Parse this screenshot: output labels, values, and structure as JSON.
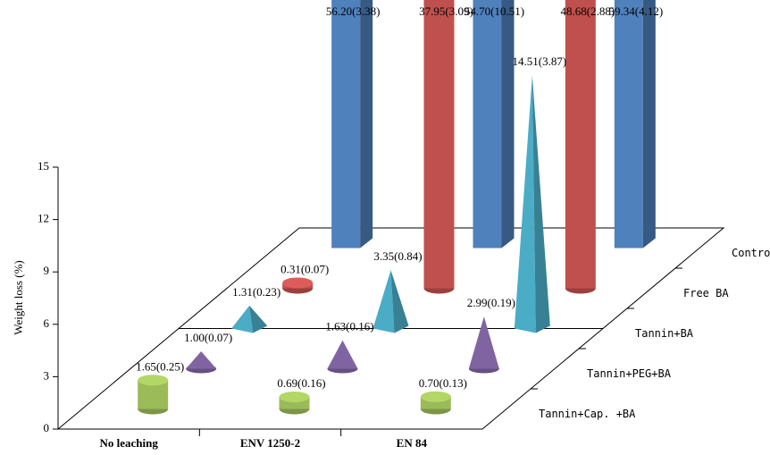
{
  "chart_data": {
    "type": "bar3d",
    "y_label": "Weight loss (%)",
    "categories": [
      "No leaching",
      "ENV 1250-2",
      "EN 84"
    ],
    "ylim": [
      0,
      15
    ],
    "yticks": [
      0,
      3,
      6,
      9,
      12,
      15
    ],
    "series": [
      {
        "name": "Control",
        "color": "#4f81bd",
        "shape": "box",
        "values": [
          56.2,
          54.7,
          59.34
        ],
        "errors": [
          3.38,
          10.51,
          4.12
        ],
        "value_labels": [
          "56.20(3.38)",
          "54.70(10.51)",
          "59.34(4.12)"
        ]
      },
      {
        "name": "Free BA",
        "color": "#c0504d",
        "shape": "cylinder",
        "values": [
          0.31,
          37.95,
          48.68
        ],
        "errors": [
          0.07,
          3.09,
          2.88
        ],
        "value_labels": [
          "0.31(0.07)",
          "37.95(3.09)",
          "48.68(2.88)"
        ]
      },
      {
        "name": "Tannin+BA",
        "color": "#4bacc6",
        "shape": "pyramid",
        "values": [
          1.31,
          3.35,
          14.51
        ],
        "errors": [
          0.23,
          0.84,
          3.87
        ],
        "value_labels": [
          "1.31(0.23)",
          "3.35(0.84)",
          "14.51(3.87)"
        ]
      },
      {
        "name": "Tannin+PEG+BA",
        "color": "#8064a2",
        "shape": "cone",
        "values": [
          1.0,
          1.63,
          2.99
        ],
        "errors": [
          0.07,
          0.16,
          0.19
        ],
        "value_labels": [
          "1.00(0.07)",
          "1.63(0.16)",
          "2.99(0.19)"
        ]
      },
      {
        "name": "Tannin+Cap. +BA",
        "color": "#9bbb59",
        "shape": "cylinder",
        "values": [
          1.65,
          0.69,
          0.7
        ],
        "errors": [
          0.25,
          0.16,
          0.13
        ],
        "value_labels": [
          "1.65(0.25)",
          "0.69(0.16)",
          "0.70(0.13)"
        ]
      }
    ]
  }
}
